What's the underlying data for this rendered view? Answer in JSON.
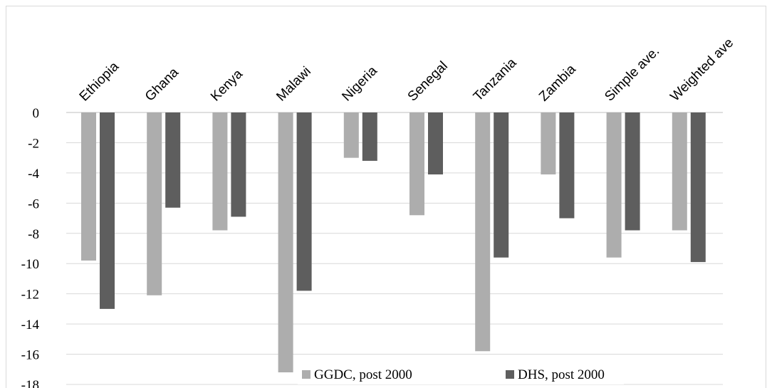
{
  "chart_data": {
    "type": "bar",
    "title": "",
    "xlabel": "",
    "ylabel": "",
    "categories": [
      "Ethiopia",
      "Ghana",
      "Kenya",
      "Malawi",
      "Nigeria",
      "Senegal",
      "Tanzania",
      "Zambia",
      "Simple ave.",
      "Weighted ave"
    ],
    "series": [
      {
        "name": "GGDC, post 2000",
        "color": "#adadad",
        "values": [
          -9.8,
          -12.1,
          -7.8,
          -17.2,
          -3.0,
          -6.8,
          -15.8,
          -4.1,
          -9.6,
          -7.8
        ]
      },
      {
        "name": "DHS, post 2000",
        "color": "#5e5e5e",
        "values": [
          -13.0,
          -6.3,
          -6.9,
          -11.8,
          -3.2,
          -4.1,
          -9.6,
          -7.0,
          -7.8,
          -9.9
        ]
      }
    ],
    "ylim": [
      -18,
      0
    ],
    "yticks": [
      "0",
      "-2",
      "-4",
      "-6",
      "-8",
      "-10",
      "-12",
      "-14",
      "-16",
      "-18"
    ],
    "grid": true,
    "legend_position": "bottom-center",
    "x_axis_position": "top",
    "category_label_rotation": "diagonal"
  }
}
